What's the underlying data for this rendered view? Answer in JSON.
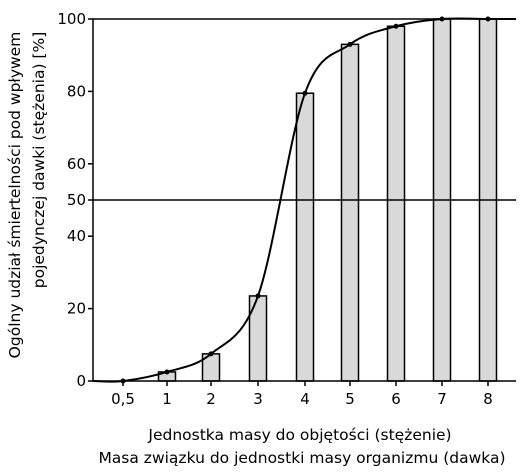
{
  "chart_data": {
    "type": "bar",
    "categories": [
      "0,5",
      "1",
      "2",
      "3",
      "4",
      "5",
      "6",
      "7",
      "8"
    ],
    "values": [
      0,
      2.5,
      7.5,
      23.5,
      79.5,
      93,
      98,
      100,
      100
    ],
    "xlabel_lines": [
      "Jednostka masy do objętości (stężenie)",
      "Masa związku do jednostki masy organizmu (dawka)"
    ],
    "ylabel_lines": [
      "Ogólny udział śmiertelności pod wpływem",
      "pojedynczej dawki (stężenia) [%]"
    ],
    "y_ticks": [
      0,
      20,
      40,
      50,
      60,
      80,
      100
    ],
    "ylim": [
      0,
      100
    ],
    "reference_line": {
      "y": 50
    },
    "curve": {
      "type": "sigmoid",
      "points": [
        {
          "x": "0,5",
          "y": 0
        },
        {
          "x": "1",
          "y": 2.5
        },
        {
          "x": "2",
          "y": 7.5
        },
        {
          "x": "3",
          "y": 23.5
        },
        {
          "x": "4",
          "y": 79.5
        },
        {
          "x": "5",
          "y": 93
        },
        {
          "x": "6",
          "y": 98
        },
        {
          "x": "7",
          "y": 100
        },
        {
          "x": "8",
          "y": 100
        }
      ]
    },
    "colors": {
      "bar_fill": "#d9d9d9",
      "bar_stroke": "#000000",
      "line": "#000000"
    },
    "grid": false,
    "legend": "none"
  }
}
